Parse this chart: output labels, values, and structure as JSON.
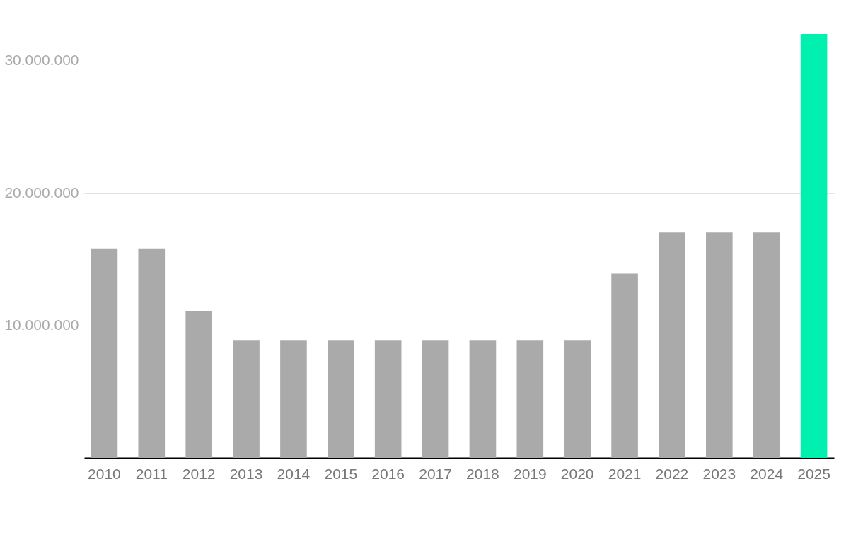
{
  "chart_data": {
    "type": "bar",
    "categories": [
      "2010",
      "2011",
      "2012",
      "2013",
      "2014",
      "2015",
      "2016",
      "2017",
      "2018",
      "2019",
      "2020",
      "2021",
      "2022",
      "2023",
      "2024",
      "2025"
    ],
    "values": [
      15800000,
      15800000,
      11100000,
      8900000,
      8900000,
      8900000,
      8900000,
      8900000,
      8900000,
      8900000,
      8900000,
      13900000,
      17000000,
      17000000,
      17000000,
      32000000
    ],
    "colors": [
      "#aaaaaa",
      "#aaaaaa",
      "#aaaaaa",
      "#aaaaaa",
      "#aaaaaa",
      "#aaaaaa",
      "#aaaaaa",
      "#aaaaaa",
      "#aaaaaa",
      "#aaaaaa",
      "#aaaaaa",
      "#aaaaaa",
      "#aaaaaa",
      "#aaaaaa",
      "#aaaaaa",
      "#00f0b0"
    ],
    "ylim": [
      0,
      32000000
    ],
    "yticks": [
      {
        "value": 10000000,
        "label": "10.000.000"
      },
      {
        "value": 20000000,
        "label": "20.000.000"
      },
      {
        "value": 30000000,
        "label": "30.000.000"
      }
    ],
    "grid": "y"
  }
}
